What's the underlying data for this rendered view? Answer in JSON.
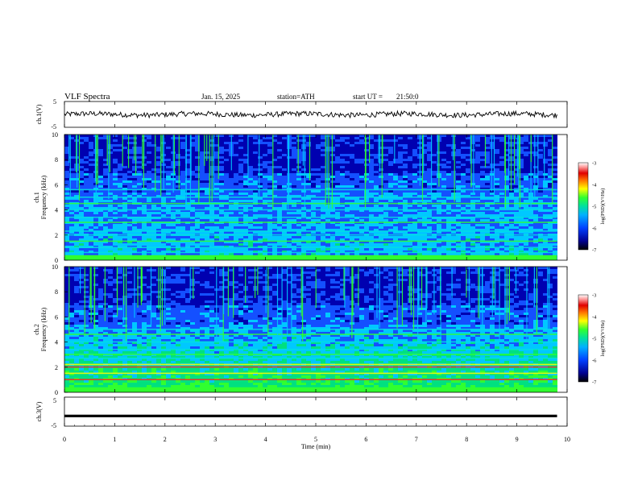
{
  "header": {
    "title": "VLF Spectra",
    "date": "Jan. 15, 2025",
    "station": "station=ATH",
    "start": "start UT =",
    "start_time": "21:50:0"
  },
  "chart_data": [
    {
      "type": "line",
      "panel": "ch1-waveform",
      "ylabel": "ch.1(V)",
      "ylim": [
        -5,
        5
      ],
      "ytick_labels": [
        "5",
        "-5"
      ],
      "x_range": [
        0,
        9.8
      ],
      "level": 0,
      "amplitude_approx": 1
    },
    {
      "type": "heatmap",
      "panel": "ch1-spectrogram",
      "ylabel": [
        "ch.1",
        "Frequency (kHz)"
      ],
      "ylim": [
        0,
        10
      ],
      "ytick_labels": [
        "0",
        "2",
        "4",
        "6",
        "8",
        "10"
      ],
      "x_range": [
        0,
        9.8
      ],
      "colorbar": {
        "label": "log(PSD)(V²/Hz)",
        "range": [
          -7,
          -3
        ],
        "tick_labels": [
          "-3",
          "-4",
          "-5",
          "-6",
          "-7"
        ]
      },
      "bands_khz": [
        0.3,
        0.6,
        1.0,
        1.5,
        2.0,
        2.3,
        3.0,
        3.4,
        4.0,
        4.5,
        5.0,
        5.6
      ]
    },
    {
      "type": "heatmap",
      "panel": "ch2-spectrogram",
      "ylabel": [
        "ch.2",
        "Frequency (kHz)"
      ],
      "ylim": [
        0,
        10
      ],
      "ytick_labels": [
        "0",
        "2",
        "4",
        "6",
        "8",
        "10"
      ],
      "x_range": [
        0,
        9.8
      ],
      "colorbar": {
        "label": "log(PSD)(V²/Hz)",
        "range": [
          -7,
          -3
        ],
        "tick_labels": [
          "-3",
          "-4",
          "-5",
          "-6",
          "-7"
        ]
      },
      "bands_khz": [
        0.3,
        1.0,
        1.5,
        2.0,
        2.2,
        2.7,
        3.0,
        3.4,
        4.0,
        4.6,
        5.0
      ]
    },
    {
      "type": "line",
      "panel": "ch3-waveform",
      "ylabel": "ch.3(V)",
      "ylim": [
        -5,
        5
      ],
      "ytick_labels": [
        "5",
        "-5"
      ],
      "x_range": [
        0,
        9.8
      ],
      "level": -1.5
    }
  ],
  "xaxis": {
    "label": "Time (min)",
    "xlim": [
      0,
      10
    ],
    "tick_labels": [
      "0",
      "1",
      "2",
      "3",
      "4",
      "5",
      "6",
      "7",
      "8",
      "9",
      "10"
    ]
  },
  "colors": {
    "spectrogram_palette": [
      "#000040",
      "#0000b0",
      "#1450ff",
      "#00c8ff",
      "#00e080",
      "#30ff30",
      "#ffff00",
      "#ff8000",
      "#e00000",
      "#ff9090",
      "#ffffff"
    ]
  }
}
